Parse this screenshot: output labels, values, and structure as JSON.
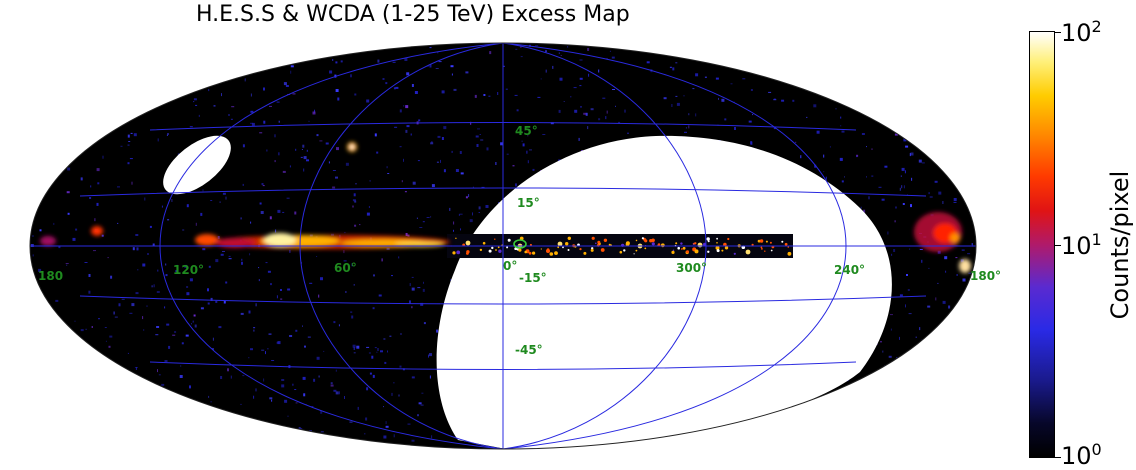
{
  "title": "H.E.S.S & WCDA (1-25 TeV) Excess Map",
  "longitude_labels": [
    "180",
    "120°",
    "60°",
    "0°",
    "300°",
    "240°",
    "180°"
  ],
  "latitude_labels": [
    "45°",
    "15°",
    "-15°",
    "-45°"
  ],
  "colorbar": {
    "label": "Counts/pixel",
    "scale": "log",
    "ticks": [
      {
        "base": "10",
        "exp": "2"
      },
      {
        "base": "10",
        "exp": "1"
      },
      {
        "base": "10",
        "exp": "0"
      }
    ]
  },
  "colors": {
    "grid": "#2a2ae0",
    "coordinate_labels": "#1f8a1f",
    "sky_background": "#000000",
    "unobserved": "#ffffff"
  }
}
